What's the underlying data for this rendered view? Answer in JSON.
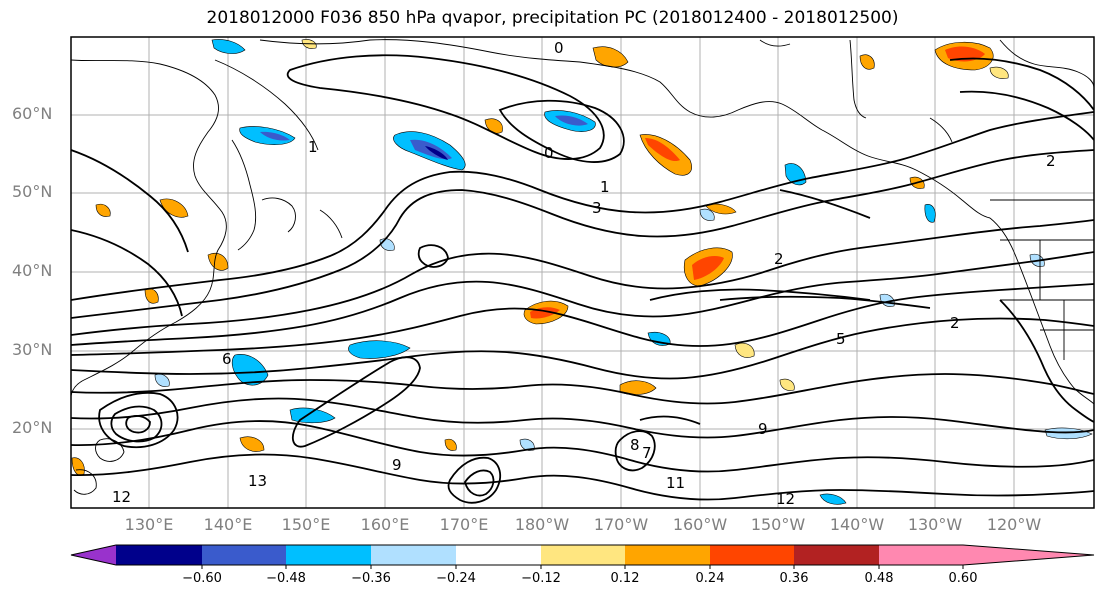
{
  "title": "2018012000 F036 850 hPa qvapor, precipitation PC (2018012400 - 2018012500)",
  "lat_labels": [
    "60°N",
    "50°N",
    "40°N",
    "30°N",
    "20°N"
  ],
  "lon_labels": [
    "130°E",
    "140°E",
    "150°E",
    "160°E",
    "170°E",
    "180°W",
    "170°W",
    "160°W",
    "150°W",
    "140°W",
    "130°W",
    "120°W"
  ],
  "colorbar": {
    "colors": [
      "#9932cc",
      "#00008b",
      "#3a5bcc",
      "#00bfff",
      "#b0e0ff",
      "#ffffff",
      "#ffe680",
      "#ffa500",
      "#ff4500",
      "#b22222",
      "#ff88b0"
    ],
    "tick_labels": [
      "−0.60",
      "−0.48",
      "−0.36",
      "−0.24",
      "−0.12",
      "0.12",
      "0.24",
      "0.36",
      "0.48",
      "0.60"
    ]
  },
  "contour_labels": [
    "0",
    "1",
    "2",
    "3",
    "5",
    "6",
    "7",
    "8",
    "9",
    "11",
    "12",
    "13"
  ]
}
